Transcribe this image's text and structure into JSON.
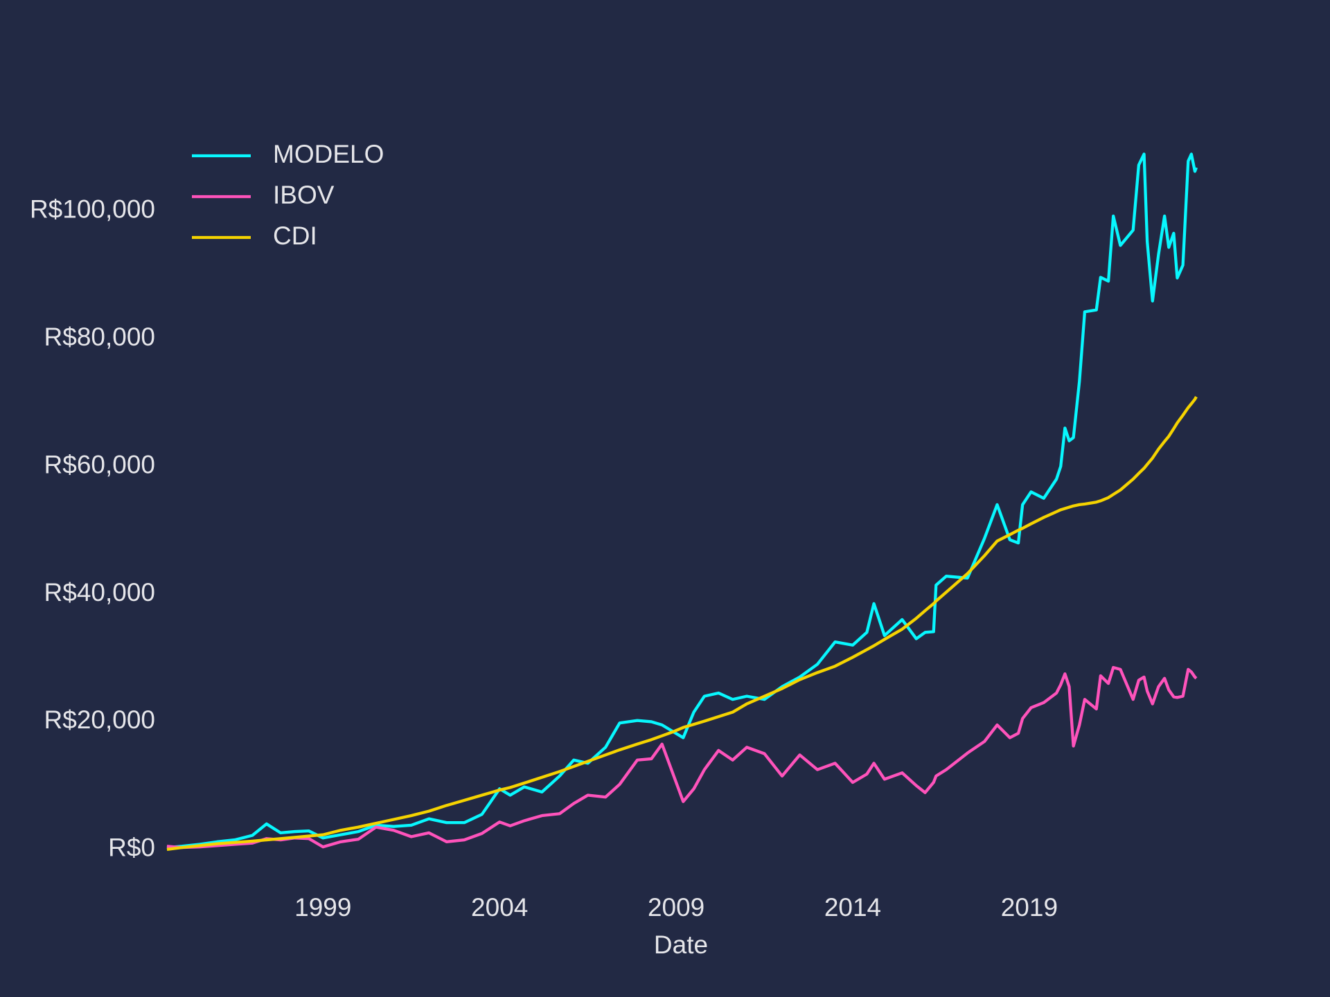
{
  "chart_data": {
    "type": "line",
    "xlabel": "Date",
    "legend": "upper left",
    "grid": false,
    "background": "#222944",
    "xlim": [
      1994.58,
      2023.73
    ],
    "xticks": [
      1999,
      2004,
      2009,
      2014,
      2019
    ],
    "ylim": [
      -5000,
      112000
    ],
    "yticks": [
      {
        "value": 0,
        "label": "R$0"
      },
      {
        "value": 20000,
        "label": "R$20,000"
      },
      {
        "value": 40000,
        "label": "R$40,000"
      },
      {
        "value": 60000,
        "label": "R$60,000"
      },
      {
        "value": 80000,
        "label": "R$80,000"
      },
      {
        "value": 100000,
        "label": "R$100,000"
      }
    ],
    "x": [
      1994.58,
      1995.0,
      1995.5,
      1996.0,
      1996.5,
      1997.0,
      1997.4,
      1997.8,
      1998.2,
      1998.6,
      1999.0,
      1999.5,
      2000.0,
      2000.5,
      2001.0,
      2001.5,
      2002.0,
      2002.5,
      2003.0,
      2003.5,
      2004.0,
      2004.3,
      2004.7,
      2005.2,
      2005.7,
      2006.1,
      2006.5,
      2007.0,
      2007.4,
      2007.9,
      2008.3,
      2008.6,
      2008.9,
      2009.2,
      2009.5,
      2009.8,
      2010.2,
      2010.6,
      2011.0,
      2011.5,
      2012.0,
      2012.5,
      2013.0,
      2013.5,
      2014.0,
      2014.4,
      2014.6,
      2014.9,
      2015.4,
      2015.8,
      2016.05,
      2016.29,
      2016.36,
      2016.65,
      2017.25,
      2017.73,
      2018.09,
      2018.45,
      2018.69,
      2018.81,
      2019.05,
      2019.41,
      2019.77,
      2019.89,
      2020.01,
      2020.13,
      2020.25,
      2020.42,
      2020.57,
      2020.9,
      2021.02,
      2021.24,
      2021.38,
      2021.58,
      2021.94,
      2022.1,
      2022.25,
      2022.34,
      2022.49,
      2022.66,
      2022.83,
      2022.95,
      2023.09,
      2023.19,
      2023.35,
      2023.5,
      2023.59,
      2023.69,
      2023.73
    ],
    "series": [
      {
        "name": "MODELO",
        "color": "#08f7fe",
        "values": [
          300,
          500,
          800,
          1200,
          1500,
          2200,
          4000,
          2600,
          2800,
          2900,
          1800,
          2300,
          2800,
          3800,
          3600,
          3800,
          4800,
          4200,
          4200,
          5500,
          9500,
          8500,
          9800,
          9000,
          11500,
          14000,
          13500,
          16000,
          19800,
          20200,
          20000,
          19500,
          18500,
          17500,
          21500,
          24000,
          24500,
          23500,
          24000,
          23500,
          25500,
          27000,
          29000,
          32500,
          32000,
          34000,
          38500,
          33500,
          36000,
          33000,
          34000,
          34100,
          41400,
          42800,
          42500,
          48700,
          54000,
          48500,
          48000,
          54000,
          56000,
          55000,
          58000,
          60000,
          66000,
          64000,
          64500,
          73300,
          84200,
          84500,
          89600,
          89000,
          99200,
          94600,
          97000,
          107200,
          108900,
          95200,
          85900,
          93200,
          99200,
          94300,
          96500,
          89500,
          91500,
          107800,
          108900,
          106200,
          106800
        ]
      },
      {
        "name": "IBOV",
        "color": "#fe53bb",
        "values": [
          500,
          300,
          400,
          600,
          800,
          1000,
          1700,
          1500,
          1800,
          1700,
          400,
          1200,
          1600,
          3500,
          3000,
          2000,
          2600,
          1200,
          1500,
          2500,
          4300,
          3700,
          4500,
          5300,
          5600,
          7200,
          8500,
          8200,
          10200,
          14000,
          14200,
          16500,
          12000,
          7500,
          9500,
          12500,
          15500,
          14000,
          16000,
          15000,
          11500,
          14800,
          12500,
          13500,
          10500,
          11800,
          13500,
          11000,
          12000,
          10000,
          8900,
          10500,
          11500,
          12500,
          15100,
          16900,
          19500,
          17500,
          18200,
          20500,
          22200,
          23000,
          24500,
          25800,
          27500,
          25500,
          16200,
          19500,
          23500,
          22000,
          27200,
          26000,
          28500,
          28200,
          23500,
          26500,
          27000,
          24800,
          22800,
          25500,
          26800,
          25000,
          23900,
          23800,
          24000,
          28200,
          27800,
          27000,
          26800
        ]
      },
      {
        "name": "CDI",
        "color": "#f5d300",
        "values": [
          0,
          300,
          600,
          900,
          1100,
          1300,
          1500,
          1700,
          1900,
          2100,
          2300,
          3000,
          3500,
          4100,
          4700,
          5300,
          6000,
          6900,
          7700,
          8500,
          9300,
          9700,
          10400,
          11300,
          12200,
          13000,
          13800,
          14800,
          15600,
          16500,
          17200,
          17800,
          18400,
          19100,
          19600,
          20100,
          20800,
          21500,
          22800,
          24000,
          25200,
          26600,
          27700,
          28700,
          30100,
          31300,
          31900,
          32900,
          34500,
          36200,
          37400,
          38500,
          38900,
          40300,
          43200,
          46000,
          48300,
          49300,
          50000,
          50300,
          51000,
          52000,
          52900,
          53200,
          53400,
          53600,
          53800,
          54000,
          54100,
          54400,
          54600,
          55100,
          55600,
          56300,
          58000,
          58900,
          59700,
          60300,
          61300,
          62700,
          63900,
          64700,
          65900,
          66800,
          68000,
          69200,
          69800,
          70500,
          70900
        ]
      }
    ]
  }
}
